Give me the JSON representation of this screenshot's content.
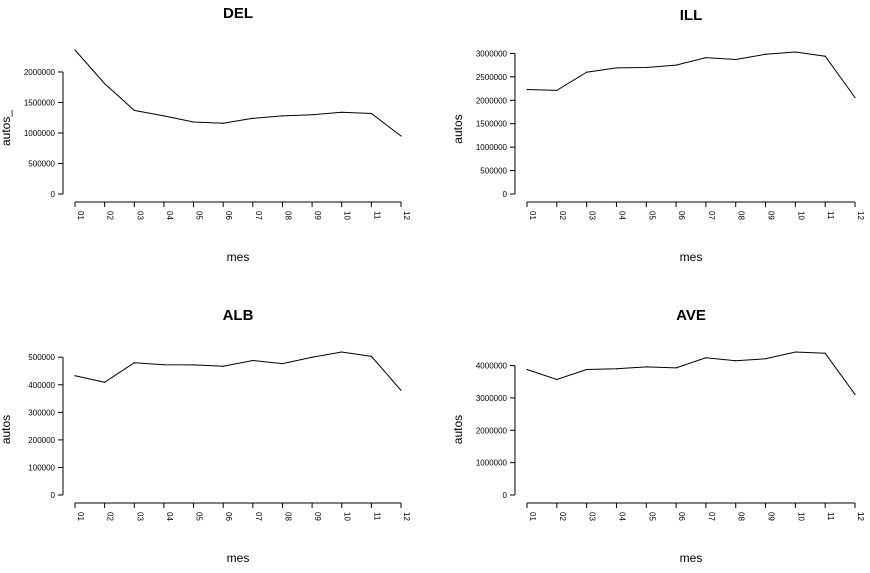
{
  "chart_data": [
    {
      "type": "line",
      "title": "DEL",
      "xlabel": "mes",
      "ylabel": "autos_",
      "categories": [
        "01",
        "02",
        "03",
        "04",
        "05",
        "06",
        "07",
        "08",
        "09",
        "10",
        "11",
        "12"
      ],
      "values": [
        2360000,
        1810000,
        1370000,
        1280000,
        1180000,
        1160000,
        1240000,
        1280000,
        1300000,
        1340000,
        1320000,
        950000
      ],
      "yticks": [
        0,
        500000,
        1000000,
        1500000,
        2000000
      ],
      "ytick_labels": [
        "0",
        "500000",
        "1000000",
        "1500000",
        "2000000"
      ],
      "ylim": [
        0,
        2360000
      ],
      "grid": false
    },
    {
      "type": "line",
      "title": "ILL",
      "xlabel": "mes",
      "ylabel": "autos",
      "categories": [
        "01",
        "02",
        "03",
        "04",
        "05",
        "06",
        "07",
        "08",
        "09",
        "10",
        "11",
        "12"
      ],
      "values": [
        2230000,
        2210000,
        2600000,
        2690000,
        2700000,
        2750000,
        2910000,
        2870000,
        2980000,
        3030000,
        2940000,
        2060000
      ],
      "yticks": [
        0,
        500000,
        1000000,
        1500000,
        2000000,
        2500000,
        3000000
      ],
      "ytick_labels": [
        "0",
        "500000",
        "1000000",
        "1500000",
        "2000000",
        "2500000",
        "3000000"
      ],
      "ylim": [
        0,
        3030000
      ],
      "grid": false
    },
    {
      "type": "line",
      "title": "ALB",
      "xlabel": "mes",
      "ylabel": "autos",
      "categories": [
        "01",
        "02",
        "03",
        "04",
        "05",
        "06",
        "07",
        "08",
        "09",
        "10",
        "11",
        "12"
      ],
      "values": [
        433000,
        409000,
        480000,
        473000,
        472000,
        467000,
        488000,
        477000,
        500000,
        519000,
        503000,
        380000
      ],
      "yticks": [
        0,
        100000,
        200000,
        300000,
        400000,
        500000
      ],
      "ytick_labels": [
        "0",
        "100000",
        "200000",
        "300000",
        "400000",
        "500000"
      ],
      "ylim": [
        0,
        519000
      ],
      "grid": false
    },
    {
      "type": "line",
      "title": "AVE",
      "xlabel": "mes",
      "ylabel": "autos",
      "categories": [
        "01",
        "02",
        "03",
        "04",
        "05",
        "06",
        "07",
        "08",
        "09",
        "10",
        "11",
        "12"
      ],
      "values": [
        3880000,
        3570000,
        3880000,
        3900000,
        3960000,
        3930000,
        4240000,
        4150000,
        4210000,
        4420000,
        4380000,
        3110000
      ],
      "yticks": [
        0,
        1000000,
        2000000,
        3000000,
        4000000
      ],
      "ytick_labels": [
        "0",
        "1000000",
        "2000000",
        "3000000",
        "4000000"
      ],
      "ylim": [
        0,
        4420000
      ],
      "grid": false
    }
  ]
}
